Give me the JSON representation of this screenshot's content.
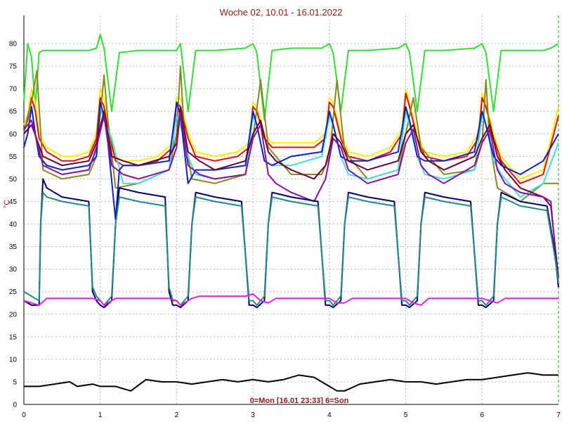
{
  "chart_data": {
    "type": "line",
    "title": "Woche 02, 10.01 - 16.01.2022",
    "footer": "0=Mon [16.01 23:33] 6=Son",
    "ylabel": "°C",
    "xlabel": "",
    "xlim": [
      0,
      7
    ],
    "ylim": [
      0,
      85
    ],
    "x_ticks": [
      "0",
      "1",
      "2",
      "3",
      "4",
      "5",
      "6",
      "7"
    ],
    "y_ticks": [
      "0",
      "5",
      "10",
      "15",
      "20",
      "25",
      "30",
      "35",
      "40",
      "45",
      "50",
      "55",
      "60",
      "65",
      "70",
      "75",
      "80"
    ],
    "grid": true,
    "series": [
      {
        "color": "#33dd33",
        "x": [
          0,
          0.05,
          0.1,
          0.15,
          0.2,
          0.25,
          0.35,
          0.5,
          0.65,
          0.85,
          0.95,
          1.0,
          1.05,
          1.15,
          1.25,
          1.5,
          1.75,
          2.0,
          2.05,
          2.15,
          2.25,
          2.5,
          2.9,
          3.0,
          3.05,
          3.15,
          3.25,
          3.5,
          3.9,
          4.0,
          4.05,
          4.15,
          4.25,
          4.5,
          4.9,
          5.0,
          5.05,
          5.15,
          5.25,
          5.5,
          5.9,
          6.0,
          6.05,
          6.15,
          6.25,
          6.5,
          6.8,
          6.9,
          7.0
        ],
        "y": [
          67,
          80,
          77,
          66,
          78,
          78.5,
          78.5,
          78.5,
          78.5,
          78.5,
          79,
          82,
          79,
          65,
          78,
          78.5,
          78.5,
          78.5,
          80,
          65,
          78.5,
          78.5,
          79,
          80,
          78,
          63,
          78.5,
          79,
          79,
          80,
          78,
          65,
          78.5,
          78.5,
          79,
          80,
          78,
          65,
          78.5,
          78.5,
          79,
          80,
          78,
          65,
          78.5,
          78.5,
          78.5,
          79,
          80
        ]
      },
      {
        "color": "#ffee00",
        "x": [
          0,
          0.05,
          0.1,
          0.15,
          0.2,
          0.3,
          0.5,
          0.65,
          0.85,
          0.95,
          1.0,
          1.05,
          1.1,
          1.2,
          1.3,
          1.5,
          1.75,
          1.95,
          2.0,
          2.05,
          2.15,
          2.25,
          2.5,
          2.8,
          2.95,
          3.0,
          3.05,
          3.15,
          3.25,
          3.5,
          3.8,
          3.95,
          4.0,
          4.05,
          4.15,
          4.25,
          4.5,
          4.8,
          4.95,
          5.0,
          5.05,
          5.15,
          5.25,
          5.5,
          5.8,
          5.95,
          6.0,
          6.05,
          6.15,
          6.25,
          6.5,
          6.8,
          7.0
        ],
        "y": [
          62,
          64,
          70,
          67,
          60,
          57,
          55,
          55,
          56,
          60,
          70,
          68,
          62,
          55,
          54,
          54,
          55,
          58,
          68,
          68,
          60,
          56,
          55,
          56,
          58,
          67,
          66,
          60,
          58,
          58,
          58,
          60,
          68,
          67,
          60,
          56,
          55,
          57,
          61,
          70,
          67,
          60,
          56,
          55,
          56,
          60,
          69,
          67,
          60,
          55,
          50,
          52,
          66
        ]
      },
      {
        "color": "#dd1111",
        "x": [
          0,
          0.05,
          0.1,
          0.15,
          0.2,
          0.3,
          0.5,
          0.65,
          0.85,
          0.95,
          1.0,
          1.05,
          1.1,
          1.2,
          1.3,
          1.5,
          1.75,
          1.95,
          2.0,
          2.05,
          2.15,
          2.25,
          2.5,
          2.8,
          2.95,
          3.0,
          3.05,
          3.15,
          3.25,
          3.5,
          3.8,
          3.95,
          4.0,
          4.05,
          4.15,
          4.25,
          4.5,
          4.8,
          4.95,
          5.0,
          5.05,
          5.15,
          5.25,
          5.5,
          5.8,
          5.95,
          6.0,
          6.05,
          6.15,
          6.25,
          6.5,
          6.8,
          7.0
        ],
        "y": [
          61,
          63,
          68,
          65,
          59,
          56,
          54,
          54,
          55,
          59,
          68,
          66,
          61,
          54,
          53,
          53,
          54,
          57,
          67,
          66,
          59,
          55,
          54,
          55,
          57,
          66,
          65,
          59,
          57,
          57,
          57,
          59,
          67,
          66,
          59,
          55,
          54,
          56,
          60,
          69,
          66,
          59,
          55,
          54,
          55,
          59,
          68,
          66,
          59,
          54,
          49,
          51,
          64
        ]
      },
      {
        "color": "#888822",
        "x": [
          0,
          0.05,
          0.1,
          0.17,
          0.25,
          0.5,
          0.85,
          0.95,
          1.05,
          1.1,
          1.2,
          1.5,
          1.9,
          2.0,
          2.05,
          2.1,
          2.2,
          2.5,
          2.9,
          3.0,
          3.1,
          3.2,
          3.5,
          3.9,
          4.0,
          4.1,
          4.2,
          4.5,
          4.9,
          5.0,
          5.1,
          5.2,
          5.5,
          5.9,
          6.0,
          6.05,
          6.1,
          6.2,
          6.5,
          6.8,
          7.0
        ],
        "y": [
          60,
          64,
          67,
          74,
          52,
          50,
          51,
          55,
          73,
          63,
          48,
          49,
          52,
          60,
          75,
          60,
          50,
          49,
          51,
          59,
          72,
          57,
          51,
          51,
          55,
          72,
          56,
          50,
          52,
          60,
          68,
          57,
          51,
          52,
          58,
          72,
          58,
          48,
          45,
          49,
          49
        ]
      },
      {
        "color": "#44dddd",
        "x": [
          0,
          0.05,
          0.1,
          0.15,
          0.2,
          0.3,
          0.5,
          0.85,
          0.95,
          1.0,
          1.05,
          1.15,
          1.3,
          1.5,
          1.9,
          2.0,
          2.05,
          2.15,
          2.25,
          2.5,
          2.9,
          3.0,
          3.05,
          3.15,
          3.25,
          3.5,
          3.9,
          4.0,
          4.05,
          4.15,
          4.25,
          4.5,
          4.9,
          5.0,
          5.05,
          5.15,
          5.25,
          5.5,
          5.9,
          6.0,
          6.05,
          6.15,
          6.25,
          6.5,
          6.8,
          7.0
        ],
        "y": [
          57,
          60,
          66,
          60,
          55,
          53,
          52,
          53,
          56,
          66,
          63,
          59,
          49,
          49,
          52,
          64,
          62,
          55,
          51,
          50,
          51,
          64,
          62,
          54,
          53,
          53,
          55,
          64,
          62,
          55,
          51,
          50,
          52,
          65,
          62,
          55,
          51,
          50,
          52,
          64,
          62,
          54,
          51,
          46,
          49,
          58
        ]
      },
      {
        "color": "#1122bb",
        "x": [
          0,
          0.05,
          0.1,
          0.15,
          0.2,
          0.3,
          0.5,
          0.85,
          0.95,
          1.0,
          1.05,
          1.1,
          1.2,
          1.25,
          1.3,
          1.5,
          1.9,
          2.0,
          2.05,
          2.15,
          2.25,
          2.5,
          2.9,
          3.0,
          3.05,
          3.15,
          3.25,
          3.5,
          3.9,
          4.0,
          4.05,
          4.15,
          4.25,
          4.5,
          4.9,
          5.0,
          5.05,
          5.15,
          5.25,
          5.5,
          5.9,
          6.0,
          6.05,
          6.15,
          6.25,
          6.5,
          6.8,
          7.0
        ],
        "y": [
          57,
          60,
          66,
          60,
          55,
          53,
          52,
          53,
          55,
          67,
          64,
          58,
          41,
          52,
          53,
          53,
          54,
          67,
          64,
          49,
          52,
          52,
          53,
          65,
          62,
          54,
          53,
          55,
          56,
          65,
          62,
          55,
          54,
          54,
          56,
          66,
          63,
          55,
          54,
          54,
          56,
          65,
          62,
          55,
          53,
          51,
          54,
          60
        ]
      },
      {
        "color": "#660033",
        "x": [
          0,
          0.1,
          0.25,
          0.5,
          0.85,
          0.95,
          1.05,
          1.15,
          1.3,
          1.5,
          1.9,
          2.0,
          2.05,
          2.15,
          2.3,
          2.5,
          2.9,
          3.0,
          3.1,
          3.2,
          3.3,
          3.5,
          3.8,
          3.95,
          4.05,
          4.15,
          4.25,
          4.5,
          4.9,
          5.0,
          5.1,
          5.2,
          5.3,
          5.5,
          5.9,
          6.0,
          6.1,
          6.2,
          6.3,
          6.5,
          6.8,
          6.9,
          7.0
        ],
        "y": [
          60,
          62,
          55,
          53,
          54,
          58,
          65,
          55,
          54,
          53,
          55,
          58,
          66,
          56,
          54,
          52,
          54,
          60,
          63,
          56,
          54,
          52,
          50,
          53,
          60,
          58,
          54,
          52,
          54,
          60,
          62,
          56,
          54,
          52,
          55,
          59,
          62,
          55,
          52,
          48,
          46,
          44,
          28
        ]
      },
      {
        "color": "#881199",
        "x": [
          0,
          0.1,
          0.25,
          0.5,
          0.85,
          0.95,
          1.05,
          1.15,
          1.3,
          1.5,
          1.9,
          2.0,
          2.05,
          2.15,
          2.3,
          2.5,
          2.9,
          3.0,
          3.1,
          3.2,
          3.3,
          3.5,
          3.8,
          3.95,
          4.05,
          4.15,
          4.25,
          4.5,
          4.9,
          5.0,
          5.1,
          5.2,
          5.3,
          5.5,
          5.9,
          6.0,
          6.1,
          6.2,
          6.3,
          6.5,
          6.8,
          6.9,
          7.0
        ],
        "y": [
          61,
          63,
          53,
          51,
          52,
          57,
          64,
          53,
          51,
          50,
          52,
          57,
          65,
          53,
          51,
          50,
          51,
          59,
          62,
          51,
          49,
          47,
          45,
          50,
          59,
          57,
          52,
          49,
          51,
          58,
          61,
          53,
          51,
          49,
          53,
          58,
          61,
          52,
          49,
          47,
          46,
          45,
          26
        ]
      },
      {
        "color": "#000066",
        "x": [
          0,
          0.1,
          0.2,
          0.22,
          0.25,
          0.3,
          0.5,
          0.85,
          0.9,
          0.95,
          1.0,
          1.05,
          1.15,
          1.2,
          1.25,
          1.5,
          1.85,
          1.9,
          1.95,
          2.0,
          2.05,
          2.15,
          2.2,
          2.25,
          2.5,
          2.85,
          2.95,
          3.0,
          3.05,
          3.15,
          3.2,
          3.25,
          3.5,
          3.85,
          3.95,
          4.0,
          4.05,
          4.15,
          4.2,
          4.25,
          4.5,
          4.85,
          4.95,
          5.0,
          5.05,
          5.15,
          5.2,
          5.25,
          5.5,
          5.85,
          5.95,
          6.0,
          6.05,
          6.15,
          6.2,
          6.25,
          6.5,
          6.85,
          6.95,
          7.0
        ],
        "y": [
          23,
          22,
          22,
          40,
          50,
          48,
          46,
          45,
          25,
          23,
          22,
          21.5,
          23,
          40,
          48,
          47,
          46,
          25,
          22,
          22,
          21.5,
          23,
          40,
          47,
          46,
          45,
          22,
          22,
          21.5,
          23,
          40,
          47,
          46,
          45,
          22,
          22,
          21.5,
          23,
          40,
          47,
          46,
          45,
          22,
          22,
          21.5,
          23,
          40,
          47,
          46,
          45,
          22,
          22,
          21.5,
          23,
          40,
          47,
          45,
          44,
          34,
          26
        ]
      },
      {
        "color": "#228888",
        "x": [
          0,
          0.1,
          0.2,
          0.22,
          0.25,
          0.3,
          0.5,
          0.85,
          0.9,
          0.95,
          1.0,
          1.05,
          1.15,
          1.2,
          1.25,
          1.5,
          1.85,
          1.9,
          1.95,
          2.0,
          2.05,
          2.15,
          2.2,
          2.25,
          2.5,
          2.85,
          2.95,
          3.0,
          3.05,
          3.15,
          3.2,
          3.25,
          3.5,
          3.85,
          3.95,
          4.0,
          4.05,
          4.15,
          4.2,
          4.25,
          4.5,
          4.85,
          4.95,
          5.0,
          5.05,
          5.15,
          5.2,
          5.25,
          5.5,
          5.85,
          5.95,
          6.0,
          6.05,
          6.15,
          6.2,
          6.25,
          6.5,
          6.85,
          6.95,
          7.0
        ],
        "y": [
          25,
          24,
          23,
          40,
          47,
          46,
          45,
          44,
          26,
          24,
          23,
          22,
          24,
          40,
          46,
          45,
          44,
          26,
          23,
          23,
          22,
          24,
          40,
          46,
          45,
          44,
          23,
          23,
          22,
          24,
          40,
          46,
          45,
          44,
          23,
          23,
          22,
          24,
          40,
          46,
          45,
          44,
          23,
          23,
          22,
          24,
          40,
          46,
          45,
          44,
          23,
          23,
          22,
          24,
          40,
          46,
          44,
          43,
          33,
          27
        ]
      },
      {
        "color": "#dd22dd",
        "x": [
          0,
          0.1,
          0.2,
          0.3,
          0.5,
          0.9,
          1.0,
          1.05,
          1.2,
          1.3,
          1.5,
          1.9,
          2.0,
          2.05,
          2.2,
          2.3,
          2.5,
          2.9,
          3.0,
          3.1,
          3.2,
          3.3,
          3.5,
          3.9,
          4.0,
          4.1,
          4.2,
          4.3,
          4.5,
          4.9,
          5.0,
          5.1,
          5.2,
          5.3,
          5.5,
          5.9,
          6.0,
          6.1,
          6.2,
          6.3,
          6.5,
          7.0
        ],
        "y": [
          23,
          22.5,
          22,
          23.5,
          23.5,
          23.5,
          23,
          22,
          23.5,
          23.5,
          23.5,
          23.5,
          23,
          22,
          23.5,
          24,
          24,
          24,
          24.5,
          23,
          22.5,
          23.5,
          23.5,
          23.5,
          23.5,
          22.5,
          22.5,
          23.5,
          23.5,
          23.5,
          23.5,
          22.5,
          22,
          23.5,
          23.5,
          23.5,
          23.5,
          23,
          22.5,
          23.5,
          23.5,
          23.5
        ]
      },
      {
        "color": "#000000",
        "x": [
          0,
          0.2,
          0.4,
          0.6,
          0.7,
          0.9,
          1.0,
          1.2,
          1.4,
          1.6,
          1.8,
          2.0,
          2.2,
          2.4,
          2.6,
          2.8,
          3.0,
          3.2,
          3.4,
          3.6,
          3.8,
          3.9,
          4.0,
          4.1,
          4.2,
          4.4,
          4.6,
          4.8,
          5.0,
          5.2,
          5.4,
          5.6,
          5.8,
          6.0,
          6.2,
          6.4,
          6.6,
          6.8,
          7.0
        ],
        "y": [
          4,
          4,
          4.5,
          5,
          4,
          4.5,
          4,
          4,
          3,
          5.5,
          5,
          5,
          4.5,
          5,
          5.5,
          5,
          5.5,
          5,
          5.5,
          6.5,
          6,
          5,
          4,
          3,
          3,
          4.5,
          5,
          5.5,
          5,
          5,
          4.5,
          5,
          5.5,
          5.5,
          6,
          6.5,
          7,
          6.5,
          6.5
        ]
      }
    ]
  }
}
